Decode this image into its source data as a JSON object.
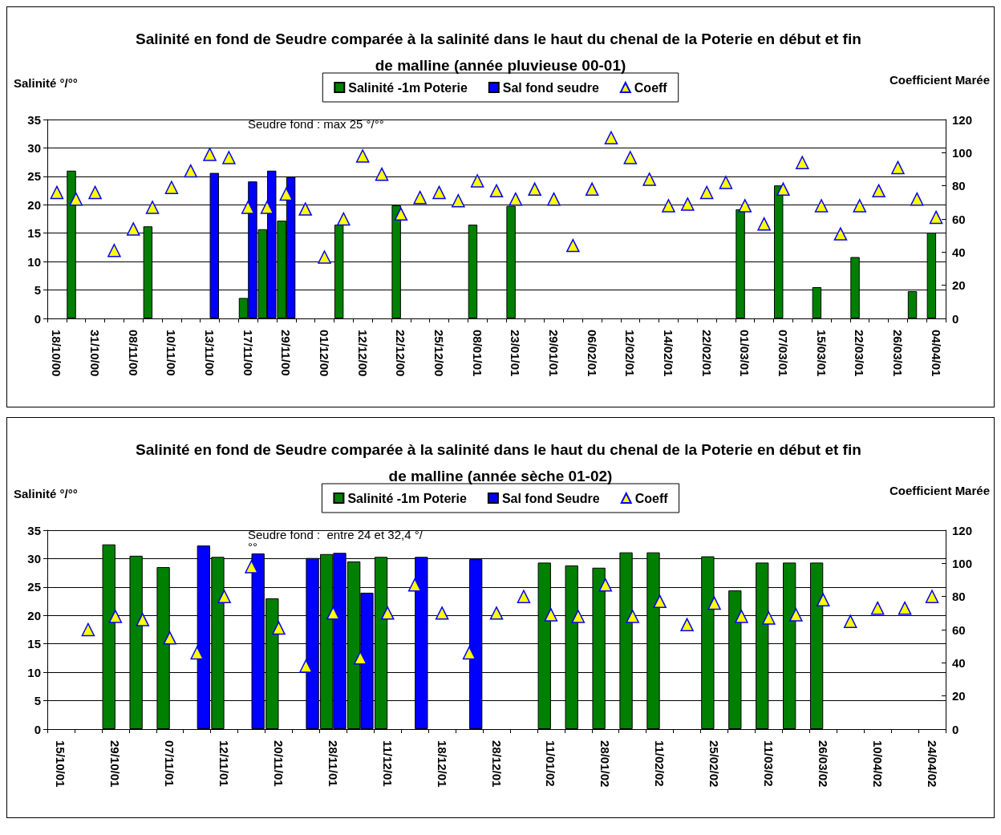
{
  "chart_data": [
    {
      "type": "bar",
      "title": "Salinité en fond de Seudre comparée à la salinité dans le haut du chenal de la Poterie en début et fin de malline (année pluvieuse 00-01)",
      "ylabel": "Salinité °/°°",
      "y2label": "Coefficient Marée",
      "annotations": [
        "Seudre fond : max 25 °/°°"
      ],
      "categories": [
        "18/10/00",
        null,
        "31/10/00",
        null,
        "08/11/00",
        null,
        "10/11/00",
        null,
        "13/11/00",
        null,
        "17/11/00",
        null,
        "29/11/00",
        null,
        "01/12/00",
        null,
        "12/12/00",
        null,
        "22/12/00",
        null,
        "25/12/00",
        null,
        "08/01/01",
        null,
        "23/01/01",
        null,
        "29/01/01",
        null,
        "06/02/01",
        null,
        "12/02/01",
        null,
        "14/02/01",
        null,
        "22/02/01",
        null,
        "01/03/01",
        null,
        "07/03/01",
        null,
        "15/03/01",
        null,
        "22/03/01",
        null,
        "26/03/01",
        null,
        "04/04/01"
      ],
      "series": [
        {
          "name": "Salinité -1m Poterie",
          "color": "#008000",
          "values": [
            null,
            26,
            null,
            null,
            null,
            16.2,
            null,
            null,
            null,
            null,
            3.6,
            15.7,
            17.2,
            null,
            null,
            16.5,
            null,
            null,
            19.9,
            null,
            null,
            null,
            16.5,
            null,
            19.8,
            null,
            null,
            null,
            null,
            null,
            null,
            null,
            null,
            null,
            null,
            null,
            19.2,
            null,
            23.4,
            null,
            5.5,
            null,
            10.8,
            null,
            null,
            4.8,
            15.1
          ]
        },
        {
          "name": "Sal fond seudre",
          "color": "#0000ff",
          "values": [
            null,
            null,
            null,
            null,
            null,
            null,
            null,
            null,
            25.6,
            null,
            24.1,
            26,
            24.9,
            null,
            null,
            null,
            null,
            null,
            null,
            null,
            null,
            null,
            null,
            null,
            null,
            null,
            null,
            null,
            null,
            null,
            null,
            null,
            null,
            null,
            null,
            null,
            null,
            null,
            null,
            null,
            null,
            null,
            null,
            null,
            null,
            null,
            null
          ]
        },
        {
          "name": "Coeff",
          "type": "scatter",
          "axis": "y2",
          "color": "#ffff00",
          "values": [
            76,
            72,
            76,
            41,
            54,
            67,
            79,
            89,
            99,
            97,
            67,
            67,
            75,
            66,
            37,
            60,
            98,
            87,
            63,
            73,
            76,
            71,
            83,
            77,
            72,
            78,
            72,
            44,
            78,
            109,
            97,
            84,
            68,
            69,
            76,
            82,
            68,
            57,
            78,
            94,
            68,
            51,
            68,
            77,
            91,
            72,
            61
          ]
        }
      ],
      "ylim": [
        0,
        35
      ],
      "yticks": [
        0,
        5,
        10,
        15,
        20,
        25,
        30,
        35
      ],
      "y2lim": [
        0,
        120
      ],
      "y2ticks": [
        0,
        20,
        40,
        60,
        80,
        100,
        120
      ],
      "grid": "y",
      "legend": "top",
      "marker": "triangle"
    },
    {
      "type": "bar",
      "title": "Salinité en fond de Seudre comparée à la salinité dans le haut du chenal de la Poterie en début et fin de malline (année sèche 01-02)",
      "ylabel": "Salinité °/°°",
      "y2label": "Coefficient Marée",
      "annotations": [
        "Seudre fond :  entre 24 et 32,4 °/°°"
      ],
      "categories": [
        "15/10/01",
        null,
        "29/10/01",
        null,
        "07/11/01",
        null,
        "12/11/01",
        null,
        "20/11/01",
        null,
        "28/11/01",
        null,
        "11/12/01",
        null,
        "18/12/01",
        null,
        "28/12/01",
        null,
        "11/01/02",
        null,
        "28/01/02",
        null,
        "11/02/02",
        null,
        "25/02/02",
        null,
        "11/03/02",
        null,
        "26/03/02",
        null,
        "10/04/02",
        null,
        "24/04/02"
      ],
      "series": [
        {
          "name": "Salinité -1m Poterie",
          "color": "#008000",
          "values": [
            null,
            null,
            32.5,
            30.5,
            28.5,
            null,
            30.3,
            null,
            23,
            null,
            30.8,
            29.5,
            30.3,
            null,
            null,
            null,
            null,
            null,
            29.3,
            28.8,
            28.4,
            31.1,
            31.1,
            null,
            30.4,
            24.4,
            29.3,
            29.3,
            29.3,
            null,
            null,
            null,
            null
          ]
        },
        {
          "name": "Sal fond Seudre",
          "color": "#0000ff",
          "values": [
            null,
            null,
            null,
            null,
            null,
            32.3,
            null,
            30.9,
            null,
            30.1,
            31,
            24,
            null,
            30.3,
            null,
            29.9,
            null,
            null,
            null,
            null,
            null,
            null,
            null,
            null,
            null,
            null,
            null,
            null,
            null,
            null,
            null,
            null,
            null
          ]
        },
        {
          "name": "Coeff",
          "type": "scatter",
          "axis": "y2",
          "color": "#ffff00",
          "values": [
            null,
            60,
            68,
            66,
            55,
            46,
            80,
            98,
            61,
            38,
            70,
            43,
            70,
            87,
            70,
            46,
            70,
            80,
            69,
            68,
            87,
            68,
            77,
            63,
            76,
            68,
            67,
            69,
            78,
            65,
            73,
            73,
            80
          ]
        }
      ],
      "ylim": [
        0,
        35
      ],
      "yticks": [
        0,
        5,
        10,
        15,
        20,
        25,
        30,
        35
      ],
      "y2lim": [
        0,
        120
      ],
      "y2ticks": [
        0,
        20,
        40,
        60,
        80,
        100,
        120
      ],
      "grid": "y",
      "legend": "top",
      "marker": "triangle"
    }
  ]
}
